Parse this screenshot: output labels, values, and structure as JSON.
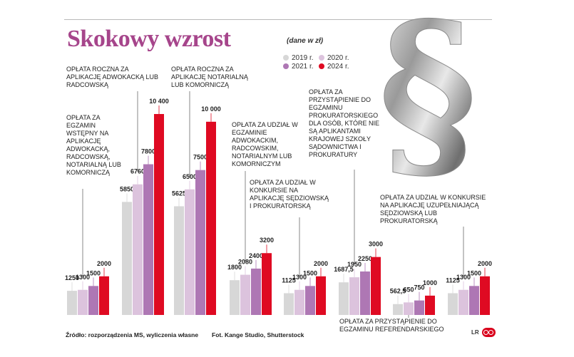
{
  "header": {
    "title": "Skokowy wzrost",
    "unit": "(dane w zł)"
  },
  "colors": {
    "y2019": "#d7d7d7",
    "y2020": "#dcc3dd",
    "y2021": "#ae77b4",
    "y2024": "#df0a22",
    "title": "#a6458b"
  },
  "footer": {
    "source": "Źródło: rozporządzenia MS, wyliczenia własne",
    "photo": "Fot. Kange Studio, Shutterstock",
    "logo": "LR"
  },
  "chart_data": {
    "type": "bar",
    "title": "Skokowy wzrost",
    "unit": "(dane w zł)",
    "series_names": [
      "2019 r.",
      "2020 r.",
      "2021 r.",
      "2024 r."
    ],
    "ylim": [
      0,
      10400
    ],
    "grid": false,
    "legend": "top-center",
    "groups": [
      {
        "label": "Opłata za egzamin wstępny na aplikację adwokacką, radcowską, notarialną lub komorniczą",
        "values": [
          1250,
          1300,
          1500,
          2000
        ],
        "value_labels": [
          "1250",
          "1300",
          "1500",
          "2000"
        ]
      },
      {
        "label": "Opłata roczna za aplikację adwokacką lub radcowską",
        "values": [
          5850,
          6760,
          7800,
          10400
        ],
        "value_labels": [
          "5850",
          "6760",
          "7800",
          "10 400"
        ]
      },
      {
        "label": "Opłata roczna za aplikację notarialną lub komorniczą",
        "values": [
          5625,
          6500,
          7500,
          10000
        ],
        "value_labels": [
          "5625",
          "6500",
          "7500",
          "10 000"
        ]
      },
      {
        "label": "Opłata za udział w egzaminie adwokackim, radcowskim, notarialnym lub komorniczym",
        "values": [
          1800,
          2080,
          2400,
          3200
        ],
        "value_labels": [
          "1800",
          "2080",
          "2400",
          "3200"
        ]
      },
      {
        "label": "Opłata za udział w konkursie na aplikację sędziowską i prokuratorską",
        "values": [
          1125,
          1300,
          1500,
          2000
        ],
        "value_labels": [
          "1125",
          "1300",
          "1500",
          "2000"
        ]
      },
      {
        "label": "Opłata za przystąpienie do egzaminu prokuratorskiego dla osób, które nie są aplikantami Krajowej Szkoły Sądownictwa i Prokuratury",
        "values": [
          1687.5,
          1950,
          2250,
          3000
        ],
        "value_labels": [
          "1687,5",
          "1950",
          "2250",
          "3000"
        ]
      },
      {
        "label": "Opłata za przystąpienie do egzaminu referendarskiego",
        "values": [
          562.5,
          650,
          750,
          1000
        ],
        "value_labels": [
          "562,5",
          "650",
          "750",
          "1000"
        ]
      },
      {
        "label": "Opłata za udział w konkursie na aplikację uzupełniającą sędziowską lub prokuratorską",
        "values": [
          1125,
          1300,
          1500,
          2000
        ],
        "value_labels": [
          "1125",
          "1300",
          "1500",
          "2000"
        ]
      }
    ]
  }
}
